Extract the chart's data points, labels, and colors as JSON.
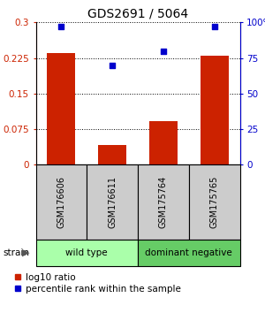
{
  "title": "GDS2691 / 5064",
  "samples": [
    "GSM176606",
    "GSM176611",
    "GSM175764",
    "GSM175765"
  ],
  "log10_ratio": [
    0.235,
    0.04,
    0.092,
    0.23
  ],
  "percentile_rank": [
    97,
    70,
    80,
    97
  ],
  "bar_color": "#cc2200",
  "dot_color": "#0000cc",
  "left_yticks": [
    0,
    0.075,
    0.15,
    0.225,
    0.3
  ],
  "right_yticks": [
    0,
    25,
    50,
    75,
    100
  ],
  "ylim_left": [
    0,
    0.3
  ],
  "ylim_right": [
    0,
    100
  ],
  "group_labels": [
    "wild type",
    "dominant negative"
  ],
  "group_ranges": [
    [
      0,
      2
    ],
    [
      2,
      4
    ]
  ],
  "group_colors": [
    "#aaffaa",
    "#66cc66"
  ],
  "sample_box_color": "#cccccc",
  "legend_red_label": "log10 ratio",
  "legend_blue_label": "percentile rank within the sample",
  "strain_label": "strain"
}
